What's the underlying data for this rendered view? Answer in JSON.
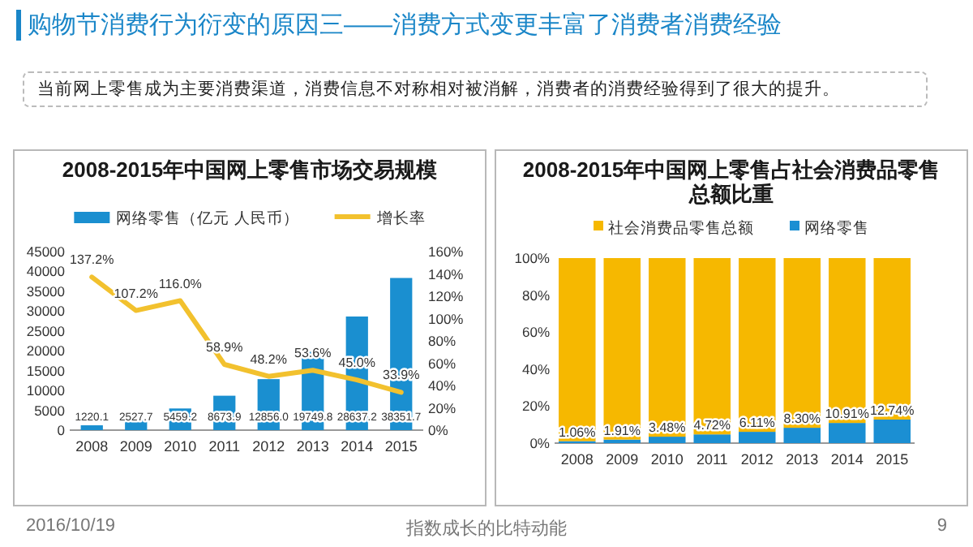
{
  "chart_data": [
    {
      "type": "bar",
      "title": "2008-2015年中国网上零售市场交易规模",
      "categories": [
        "2008",
        "2009",
        "2010",
        "2011",
        "2012",
        "2013",
        "2014",
        "2015"
      ],
      "series": [
        {
          "name": "网络零售（亿元 人民币）",
          "color": "#1a8fd0",
          "values": [
            1220.1,
            2527.7,
            5459.2,
            8673.9,
            12856.0,
            19749.8,
            28637.2,
            38351.7
          ],
          "value_labels": [
            "1220.1",
            "2527.7",
            "5459.2",
            "8673.9",
            "12856.0",
            "19749.8",
            "28637.2",
            "38351.7"
          ]
        },
        {
          "name": "增长率",
          "type": "line",
          "axis": "y2",
          "color": "#f2c12e",
          "values": [
            137.2,
            107.2,
            116.0,
            58.9,
            48.2,
            53.6,
            45.0,
            33.9
          ],
          "value_labels": [
            "137.2%",
            "107.2%",
            "116.0%",
            "58.9%",
            "48.2%",
            "53.6%",
            "45.0%",
            "33.9%"
          ]
        }
      ],
      "ylim": [
        0,
        45000
      ],
      "yticks": [
        0,
        5000,
        10000,
        15000,
        20000,
        25000,
        30000,
        35000,
        40000,
        45000
      ],
      "y2lim": [
        0,
        160
      ],
      "y2ticks": [
        {
          "value": 0,
          "label": "0%"
        },
        {
          "value": 20,
          "label": "20%"
        },
        {
          "value": 40,
          "label": "40%"
        },
        {
          "value": 60,
          "label": "60%"
        },
        {
          "value": 80,
          "label": "80%"
        },
        {
          "value": 100,
          "label": "100%"
        },
        {
          "value": 120,
          "label": "120%"
        },
        {
          "value": 140,
          "label": "140%"
        },
        {
          "value": 160,
          "label": "160%"
        }
      ],
      "legend": "top",
      "annotations": [
        "购物节消费行为衍变的原因三——消费方式变更丰富了消费者消费经验",
        "当前网上零售成为主要消费渠道，消费信息不对称相对被消解，消费者的消费经验得到了很大的提升。",
        "2016/10/19",
        "指数成长的比特动能",
        "9"
      ]
    },
    {
      "type": "bar",
      "stacked": true,
      "title": "2008-2015年中国网上零售占社会消费品零售总额比重",
      "categories": [
        "2008",
        "2009",
        "2010",
        "2011",
        "2012",
        "2013",
        "2014",
        "2015"
      ],
      "series": [
        {
          "name": "网络零售",
          "color": "#1b8fd3",
          "values": [
            1.06,
            1.91,
            3.48,
            4.72,
            6.11,
            8.3,
            10.91,
            12.74
          ],
          "value_labels": [
            "1.06%",
            "1.91%",
            "3.48%",
            "4.72%",
            "6.11%",
            "8.30%",
            "10.91%",
            "12.74%"
          ]
        },
        {
          "name": "社会消费品零售总额",
          "color": "#f6b800",
          "values": [
            98.94,
            98.09,
            96.52,
            95.28,
            93.89,
            91.7,
            89.09,
            87.26
          ]
        }
      ],
      "ylim": [
        0,
        100
      ],
      "yticks": [
        {
          "value": 0,
          "label": "0%"
        },
        {
          "value": 20,
          "label": "20%"
        },
        {
          "value": 40,
          "label": "40%"
        },
        {
          "value": 60,
          "label": "60%"
        },
        {
          "value": 80,
          "label": "80%"
        },
        {
          "value": 100,
          "label": "100%"
        }
      ],
      "legend": "top"
    }
  ]
}
